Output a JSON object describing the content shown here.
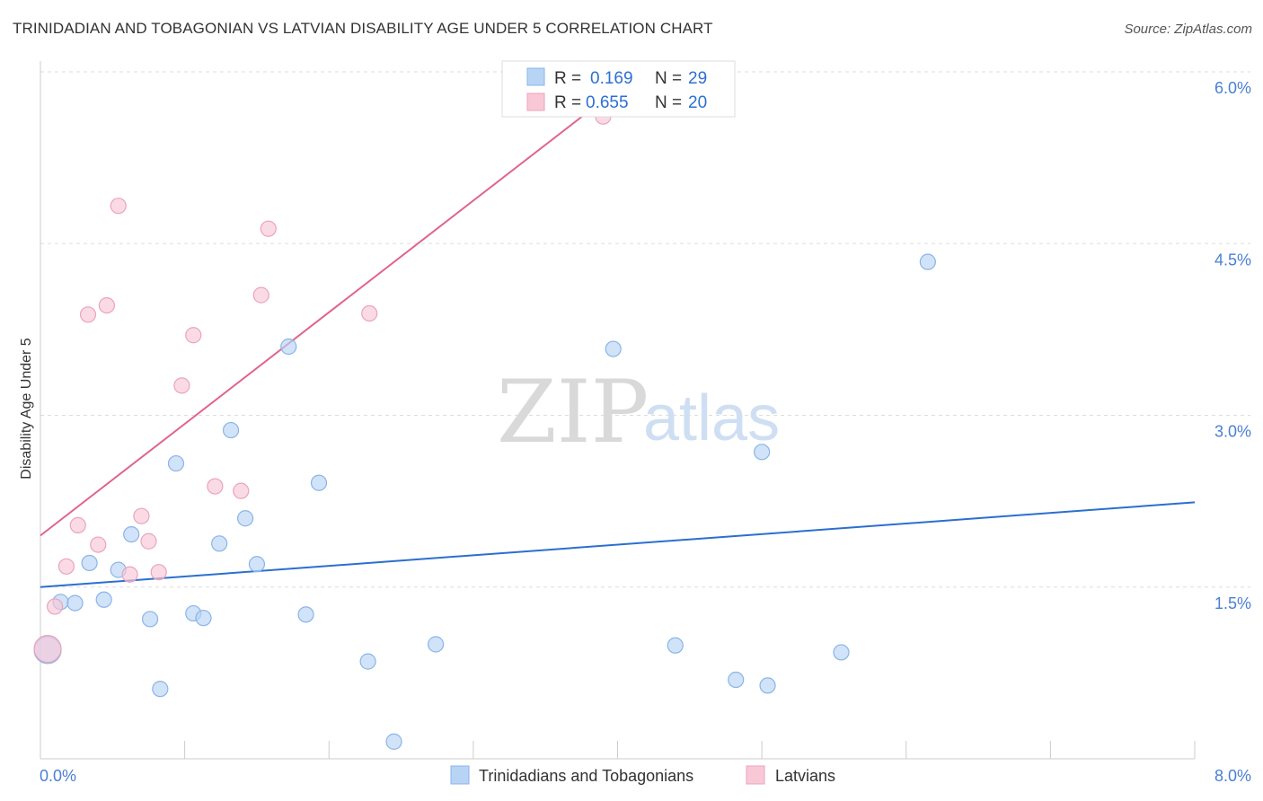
{
  "title": "TRINIDADIAN AND TOBAGONIAN VS LATVIAN DISABILITY AGE UNDER 5 CORRELATION CHART",
  "source": "Source: ZipAtlas.com",
  "watermark": {
    "zip": "ZIP",
    "atlas": "atlas"
  },
  "colors": {
    "blue_fill": "#b8d4f5",
    "blue_stroke": "#8ab4e8",
    "blue_line": "#2b6fcf",
    "pink_fill": "#f8c8d7",
    "pink_stroke": "#eca3bb",
    "pink_line": "#e0648c",
    "axis_label": "#4a7fd4"
  },
  "legend": {
    "rows": [
      {
        "r_label": "R =",
        "r_value": "0.169",
        "n_label": "N =",
        "n_value": "29"
      },
      {
        "r_label": "R =",
        "r_value": "0.655",
        "n_label": "N =",
        "n_value": "20"
      }
    ]
  },
  "bottom_legend": [
    "Trinidadians and Tobagonians",
    "Latvians"
  ],
  "chart_data": {
    "type": "scatter",
    "title": "TRINIDADIAN AND TOBAGONIAN VS LATVIAN DISABILITY AGE UNDER 5 CORRELATION CHART",
    "xlabel": "",
    "ylabel": "Disability Age Under 5",
    "xlim": [
      0,
      8
    ],
    "ylim": [
      0,
      6
    ],
    "x_tick_labels": [
      "0.0%",
      "8.0%"
    ],
    "y_ticks": [
      1.5,
      3.0,
      4.5,
      6.0
    ],
    "y_tick_labels": [
      "1.5%",
      "3.0%",
      "4.5%",
      "6.0%"
    ],
    "grid": true,
    "series": [
      {
        "name": "Trinidadians and Tobagonians",
        "color": "#b8d4f5",
        "points": [
          [
            0.05,
            0.95
          ],
          [
            0.14,
            1.37
          ],
          [
            0.24,
            1.36
          ],
          [
            0.34,
            1.71
          ],
          [
            0.44,
            1.39
          ],
          [
            0.54,
            1.65
          ],
          [
            0.63,
            1.96
          ],
          [
            0.76,
            1.22
          ],
          [
            0.83,
            0.61
          ],
          [
            0.94,
            2.58
          ],
          [
            1.06,
            1.27
          ],
          [
            1.13,
            1.23
          ],
          [
            1.24,
            1.88
          ],
          [
            1.32,
            2.87
          ],
          [
            1.42,
            2.1
          ],
          [
            1.5,
            1.7
          ],
          [
            1.72,
            3.6
          ],
          [
            1.84,
            1.26
          ],
          [
            1.93,
            2.41
          ],
          [
            2.27,
            0.85
          ],
          [
            2.45,
            0.15
          ],
          [
            2.74,
            1.0
          ],
          [
            3.97,
            3.58
          ],
          [
            4.4,
            0.99
          ],
          [
            4.82,
            0.69
          ],
          [
            5.0,
            2.68
          ],
          [
            5.04,
            0.64
          ],
          [
            5.55,
            0.93
          ],
          [
            6.15,
            4.34
          ]
        ],
        "trend": {
          "x": [
            0,
            8
          ],
          "y": [
            1.5,
            2.24
          ]
        }
      },
      {
        "name": "Latvians",
        "color": "#f8c8d7",
        "points": [
          [
            0.05,
            0.96
          ],
          [
            0.1,
            1.33
          ],
          [
            0.18,
            1.68
          ],
          [
            0.26,
            2.04
          ],
          [
            0.33,
            3.88
          ],
          [
            0.4,
            1.87
          ],
          [
            0.46,
            3.96
          ],
          [
            0.54,
            4.83
          ],
          [
            0.62,
            1.61
          ],
          [
            0.7,
            2.12
          ],
          [
            0.75,
            1.9
          ],
          [
            0.82,
            1.63
          ],
          [
            0.98,
            3.26
          ],
          [
            1.06,
            3.7
          ],
          [
            1.21,
            2.38
          ],
          [
            1.39,
            2.34
          ],
          [
            1.53,
            4.05
          ],
          [
            1.58,
            4.63
          ],
          [
            2.28,
            3.89
          ],
          [
            3.9,
            5.61
          ]
        ],
        "trend": {
          "x": [
            0,
            4.0
          ],
          "y": [
            1.95,
            5.85
          ]
        }
      }
    ]
  }
}
